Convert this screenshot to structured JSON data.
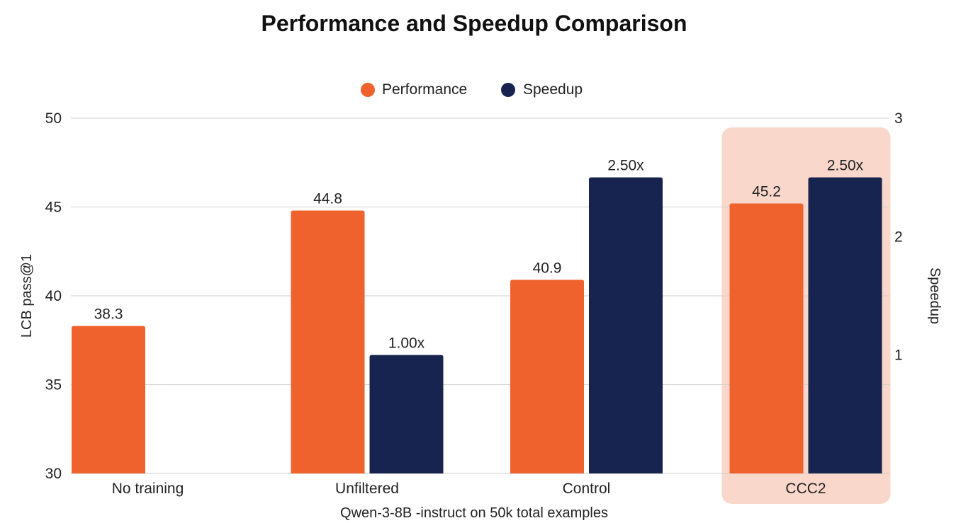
{
  "chart_data": {
    "type": "bar",
    "title": "Performance and Speedup Comparison",
    "xlabel": "Qwen-3-8B -instruct on 50k total examples",
    "ylabel": "LCB pass@1",
    "y2label": "Speedup",
    "categories": [
      "No training",
      "Unfiltered",
      "Control",
      "CCC2"
    ],
    "highlight_category": "CCC2",
    "ylim": [
      30,
      50
    ],
    "yticks": [
      "30",
      "35",
      "40",
      "45",
      "50"
    ],
    "y2lim": [
      0,
      3
    ],
    "y2ticks": [
      "1",
      "2",
      "3"
    ],
    "grid": true,
    "legend_position": "top-center",
    "series": [
      {
        "name": "Performance",
        "axis": "left",
        "color": "#EF622D",
        "values": [
          38.3,
          44.8,
          40.9,
          45.2
        ],
        "labels": [
          "38.3",
          "44.8",
          "40.9",
          "45.2"
        ]
      },
      {
        "name": "Speedup",
        "axis": "right",
        "color": "#16244F",
        "values": [
          null,
          1.0,
          2.5,
          2.5
        ],
        "labels": [
          null,
          "1.00x",
          "2.50x",
          "2.50x"
        ]
      }
    ],
    "highlight_color": "#F9D7CB"
  }
}
